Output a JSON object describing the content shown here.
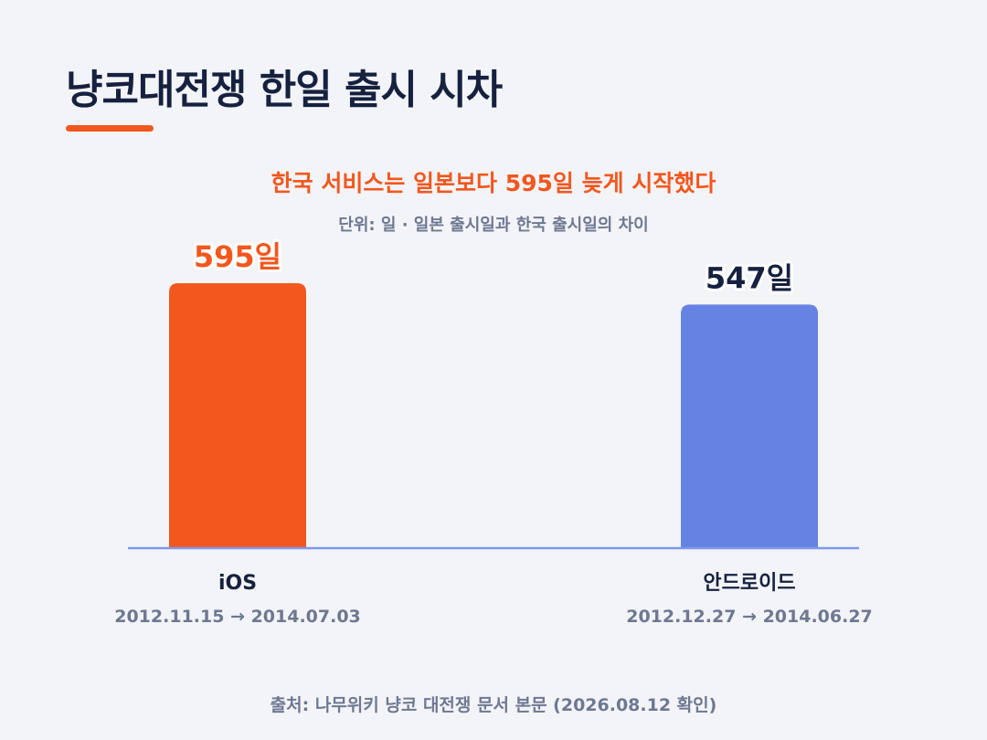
{
  "page": {
    "title": "냥코대전쟁 한일 출시 시차",
    "source": "출처: 나무위키 냥코 대전쟁 문서 본문 (2026.08.12 확인)"
  },
  "chart_data": {
    "type": "bar",
    "title": "한국 서비스는 일본보다 595일 늦게 시작했다",
    "subtitle": "단위: 일 · 일본 출시일과 한국 출시일의 차이",
    "categories": [
      "iOS",
      "안드로이드"
    ],
    "values": [
      595,
      547
    ],
    "value_labels": [
      "595일",
      "547일"
    ],
    "date_ranges": [
      "2012.11.15 → 2014.07.03",
      "2012.12.27 → 2014.06.27"
    ],
    "ylim": [
      0,
      600
    ],
    "grid": false,
    "colors": {
      "bars": [
        "#f2571e",
        "#6682e3"
      ],
      "value_labels": [
        "#f2571e",
        "#16213f"
      ],
      "baseline": "#7e98ee"
    }
  }
}
